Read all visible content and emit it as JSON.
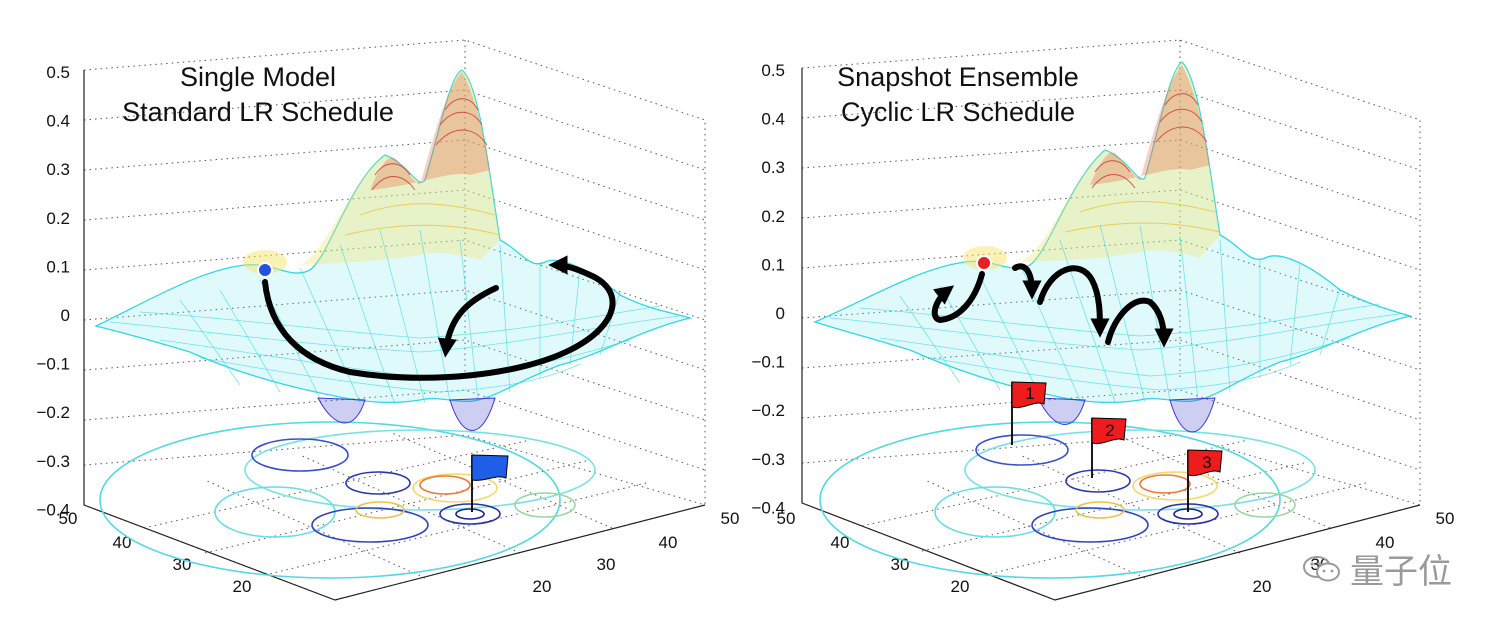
{
  "panels": [
    {
      "title_line1": "Single Model",
      "title_line2": "Standard LR Schedule",
      "z_ticks": [
        "0.5",
        "0.4",
        "0.3",
        "0.2",
        "0.1",
        "0",
        "−0.1",
        "−0.2",
        "−0.3",
        "−0.4"
      ],
      "left_axis_ticks": [
        "50",
        "40",
        "30",
        "20"
      ],
      "right_axis_ticks": [
        "50",
        "40",
        "30",
        "20"
      ],
      "start_color": "#2255dd",
      "flags": [
        {
          "label": "",
          "color": "#1f5fe8"
        }
      ]
    },
    {
      "title_line1": "Snapshot Ensemble",
      "title_line2": "Cyclic LR Schedule",
      "z_ticks": [
        "0.5",
        "0.4",
        "0.3",
        "0.2",
        "0.1",
        "0",
        "−0.1",
        "−0.2",
        "−0.3",
        "−0.4"
      ],
      "left_axis_ticks": [
        "50",
        "40",
        "30",
        "20"
      ],
      "right_axis_ticks": [
        "50",
        "40",
        "30",
        "20"
      ],
      "start_color": "#e51e1e",
      "flags": [
        {
          "label": "1",
          "color": "#ee1c1c"
        },
        {
          "label": "2",
          "color": "#ee1c1c"
        },
        {
          "label": "3",
          "color": "#ee1c1c"
        }
      ]
    }
  ],
  "watermark": {
    "text": "量子位",
    "icon": "wechat-icon"
  },
  "colors": {
    "mesh_low": "#3a3ad0",
    "mesh_mid": "#4fe0e8",
    "mesh_high": "#c0282a",
    "path": "#000000"
  }
}
